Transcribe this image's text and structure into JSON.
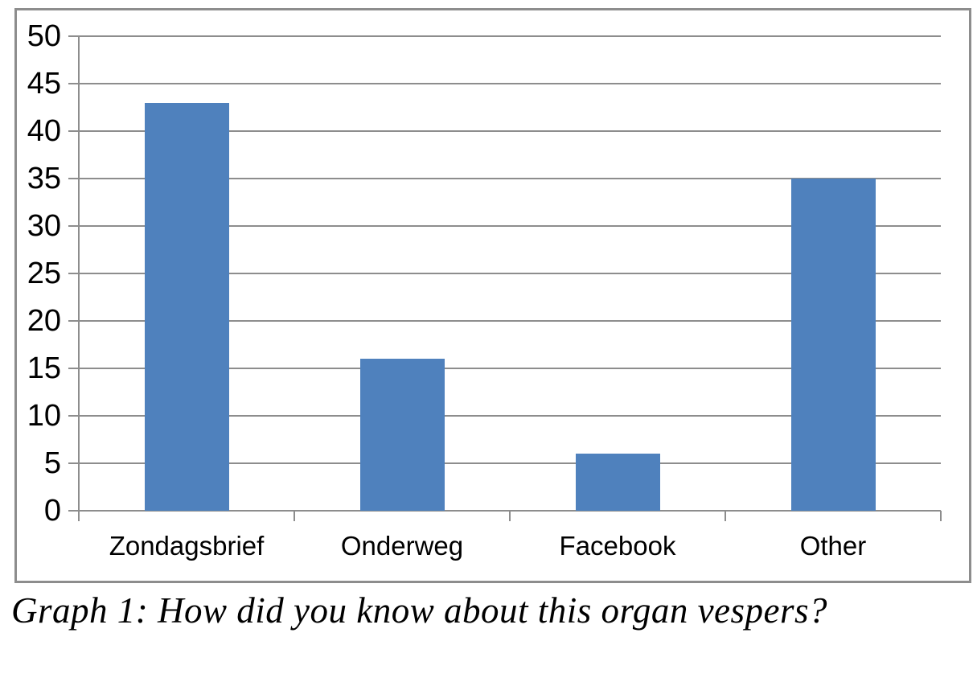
{
  "chart_data": {
    "type": "bar",
    "categories": [
      "Zondagsbrief",
      "Onderweg",
      "Facebook",
      "Other"
    ],
    "values": [
      43,
      16,
      6,
      35
    ],
    "title": "",
    "xlabel": "",
    "ylabel": "",
    "ylim": [
      0,
      50
    ],
    "yticks": [
      0,
      5,
      10,
      15,
      20,
      25,
      30,
      35,
      40,
      45,
      50
    ],
    "grid": true,
    "legend": false,
    "colors": {
      "bar": "#4F81BD",
      "grid": "#8D8D8D",
      "border": "#8D8D8D",
      "text": "#000000"
    }
  },
  "caption": "Graph 1: How did you know about this organ vespers?"
}
